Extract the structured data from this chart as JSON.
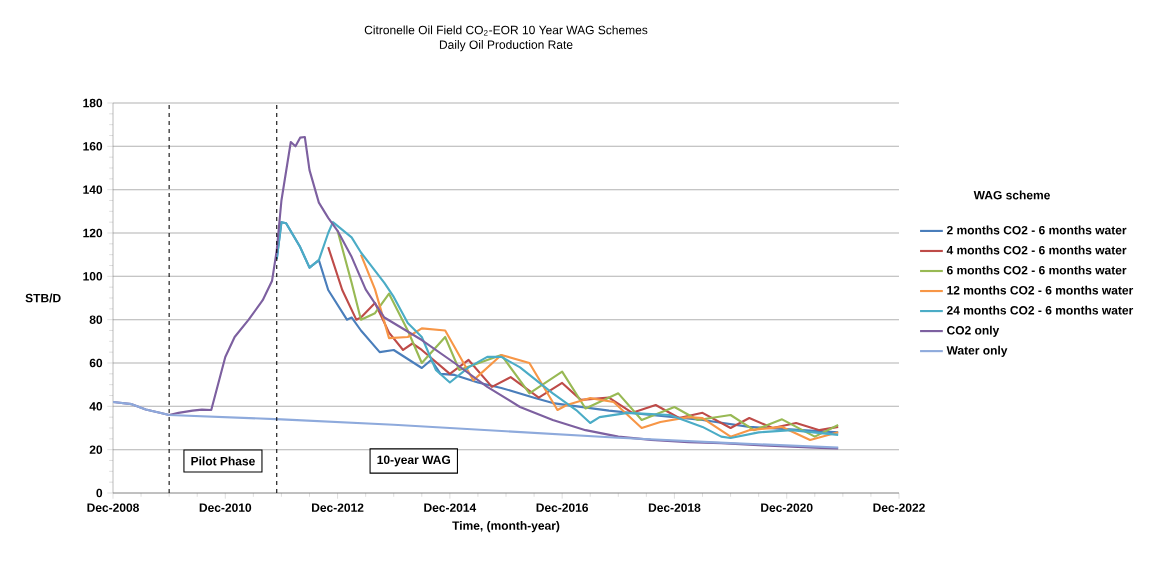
{
  "chart_data": {
    "type": "line",
    "title": "Citronelle Oil Field CO$_{2}$-EOR 10 Year WAG Schemes",
    "subtitle": "Daily Oil Production Rate",
    "xlabel": "Time, (month-year)",
    "ylabel": "STB/D",
    "legend_title": "WAG scheme",
    "xlim": [
      "2008-12",
      "2022-12"
    ],
    "ylim": [
      0,
      180
    ],
    "xticks": [
      {
        "value": "2008-12",
        "label": "Dec-2008"
      },
      {
        "value": "2010-12",
        "label": "Dec-2010"
      },
      {
        "value": "2012-12",
        "label": "Dec-2012"
      },
      {
        "value": "2014-12",
        "label": "Dec-2014"
      },
      {
        "value": "2016-12",
        "label": "Dec-2016"
      },
      {
        "value": "2018-12",
        "label": "Dec-2018"
      },
      {
        "value": "2020-12",
        "label": "Dec-2020"
      },
      {
        "value": "2022-12",
        "label": "Dec-2022"
      }
    ],
    "yticks": [
      0,
      20,
      40,
      60,
      80,
      100,
      120,
      140,
      160,
      180
    ],
    "grid": "y",
    "legend": "right",
    "marker": "none",
    "line_style": "solid",
    "ref_lines": [
      {
        "axis": "x",
        "value": "2009-12",
        "line_style": "dashed",
        "color": "#000000"
      },
      {
        "axis": "x",
        "value": "2011-11",
        "line_style": "dashed",
        "color": "#000000"
      }
    ],
    "annotations": [
      "Pilot Phase",
      "10-year WAG"
    ],
    "series": [
      {
        "name": "2 months CO2 - 6 months water",
        "color": "#4a7ebb",
        "x": [
          "2011-11",
          "2011-12",
          "2012-01",
          "2012-04",
          "2012-06",
          "2012-08",
          "2012-10",
          "2013-02",
          "2013-03",
          "2013-05",
          "2013-09",
          "2013-12",
          "2014-06",
          "2014-08",
          "2014-10",
          "2015-01",
          "2015-06",
          "2015-11",
          "2016-06",
          "2016-10",
          "2017-10",
          "2018-07",
          "2019-06",
          "2020-04",
          "2021-11"
        ],
        "values": [
          108,
          125,
          124.5,
          113.5,
          104,
          107.5,
          93.7,
          80,
          81,
          75,
          65,
          66,
          57.7,
          61.4,
          55,
          54.5,
          51,
          48.5,
          44,
          41.5,
          38,
          36,
          33.7,
          30.5,
          28
        ]
      },
      {
        "name": "4 months CO2 - 6 months water",
        "color": "#be4b48",
        "x": [
          "2012-10",
          "2013-01",
          "2013-04",
          "2013-05",
          "2013-08",
          "2013-11",
          "2014-02",
          "2014-04",
          "2014-06",
          "2014-12",
          "2015-04",
          "2015-09",
          "2016-01",
          "2016-07",
          "2016-12",
          "2017-04",
          "2017-10",
          "2018-03",
          "2018-08",
          "2019-01",
          "2019-06",
          "2019-12",
          "2020-04",
          "2020-09",
          "2021-02",
          "2021-07",
          "2021-11"
        ],
        "values": [
          113.5,
          93.7,
          80,
          81,
          87.7,
          74,
          66,
          69,
          66,
          55,
          61.4,
          49,
          53.5,
          44,
          50.8,
          43,
          44,
          37,
          40.6,
          34.6,
          37,
          30,
          34.6,
          30,
          32.3,
          29,
          30.5
        ]
      },
      {
        "name": "6 months CO2 - 6 months water",
        "color": "#98b954",
        "x": [
          "2012-12",
          "2013-03",
          "2013-05",
          "2013-08",
          "2013-11",
          "2014-03",
          "2014-06",
          "2014-11",
          "2015-02",
          "2015-11",
          "2016-05",
          "2016-12",
          "2017-05",
          "2017-12",
          "2018-05",
          "2018-12",
          "2019-05",
          "2019-12",
          "2020-05",
          "2020-11",
          "2021-06",
          "2021-11"
        ],
        "values": [
          121,
          97,
          80,
          83,
          92,
          75,
          60,
          72,
          56.8,
          63.7,
          46,
          56,
          39,
          46,
          33.7,
          39.7,
          33.7,
          36,
          29,
          34,
          26,
          31.4
        ]
      },
      {
        "name": "12 months CO2 - 6 months water",
        "color": "#f79646",
        "x": [
          "2013-05",
          "2013-08",
          "2013-11",
          "2014-03",
          "2014-06",
          "2014-11",
          "2015-01",
          "2015-05",
          "2015-11",
          "2016-05",
          "2016-11",
          "2017-01",
          "2017-06",
          "2017-11",
          "2018-05",
          "2018-09",
          "2019-03",
          "2019-06",
          "2019-12",
          "2020-04",
          "2020-11",
          "2021-05",
          "2021-11"
        ],
        "values": [
          110,
          94,
          71.5,
          72,
          76,
          75,
          67.4,
          52,
          63.7,
          60,
          38.3,
          40.6,
          43.8,
          42,
          30,
          32.8,
          35,
          34.6,
          26,
          29,
          30.5,
          24.5,
          28
        ]
      },
      {
        "name": "24 months CO2 - 6 months water",
        "color": "#4bacc6",
        "x": [
          "2011-11",
          "2011-12",
          "2012-01",
          "2012-04",
          "2012-06",
          "2012-08",
          "2012-10",
          "2012-11",
          "2013-03",
          "2013-05",
          "2013-10",
          "2013-12",
          "2014-03",
          "2014-06",
          "2014-09",
          "2014-12",
          "2015-04",
          "2015-08",
          "2015-11",
          "2016-03",
          "2016-10",
          "2017-03",
          "2017-06",
          "2017-08",
          "2018-02",
          "2018-11",
          "2019-06",
          "2019-10",
          "2019-12",
          "2020-06",
          "2021-01",
          "2021-11"
        ],
        "values": [
          108,
          125,
          124.5,
          113.5,
          104,
          107.5,
          120,
          125,
          118,
          111,
          97,
          90.5,
          78.5,
          72,
          56.8,
          51,
          58,
          62.8,
          62.8,
          58,
          46,
          38.3,
          32.3,
          35,
          37,
          36,
          30.5,
          26,
          25.4,
          28,
          29,
          26.8
        ]
      },
      {
        "name": "CO2 only",
        "color": "#7d60a0",
        "x": [
          "2008-12",
          "2009-04",
          "2009-07",
          "2009-10",
          "2009-12",
          "2010-02",
          "2010-05",
          "2010-07",
          "2010-09",
          "2010-12",
          "2011-02",
          "2011-05",
          "2011-08",
          "2011-10",
          "2011-11",
          "2011-12",
          "2012-02",
          "2012-03",
          "2012-04",
          "2012-05",
          "2012-06",
          "2012-08",
          "2012-10",
          "2012-12",
          "2013-03",
          "2013-06",
          "2013-10",
          "2014-06",
          "2015-01",
          "2015-08",
          "2016-03",
          "2016-10",
          "2017-05",
          "2017-12",
          "2018-07",
          "2019-03",
          "2019-10",
          "2020-07",
          "2021-11"
        ],
        "values": [
          42,
          41,
          38.5,
          37,
          36,
          37,
          38,
          38.5,
          38.3,
          62.8,
          72,
          80,
          89,
          98,
          112,
          135,
          162,
          160,
          164,
          164.3,
          149,
          134,
          127,
          121,
          109,
          94,
          81,
          70.6,
          60,
          49,
          39.7,
          33.7,
          29,
          26,
          24.5,
          23.5,
          23,
          22,
          20.5
        ]
      },
      {
        "name": "Water only",
        "color": "#8eaadc",
        "x": [
          "2008-12",
          "2009-04",
          "2009-07",
          "2009-10",
          "2009-12",
          "2011-12",
          "2013-12",
          "2015-12",
          "2017-12",
          "2019-12",
          "2021-11"
        ],
        "values": [
          42,
          41,
          38.5,
          37,
          36,
          34,
          31.5,
          28.5,
          25.5,
          23,
          21
        ]
      }
    ]
  }
}
